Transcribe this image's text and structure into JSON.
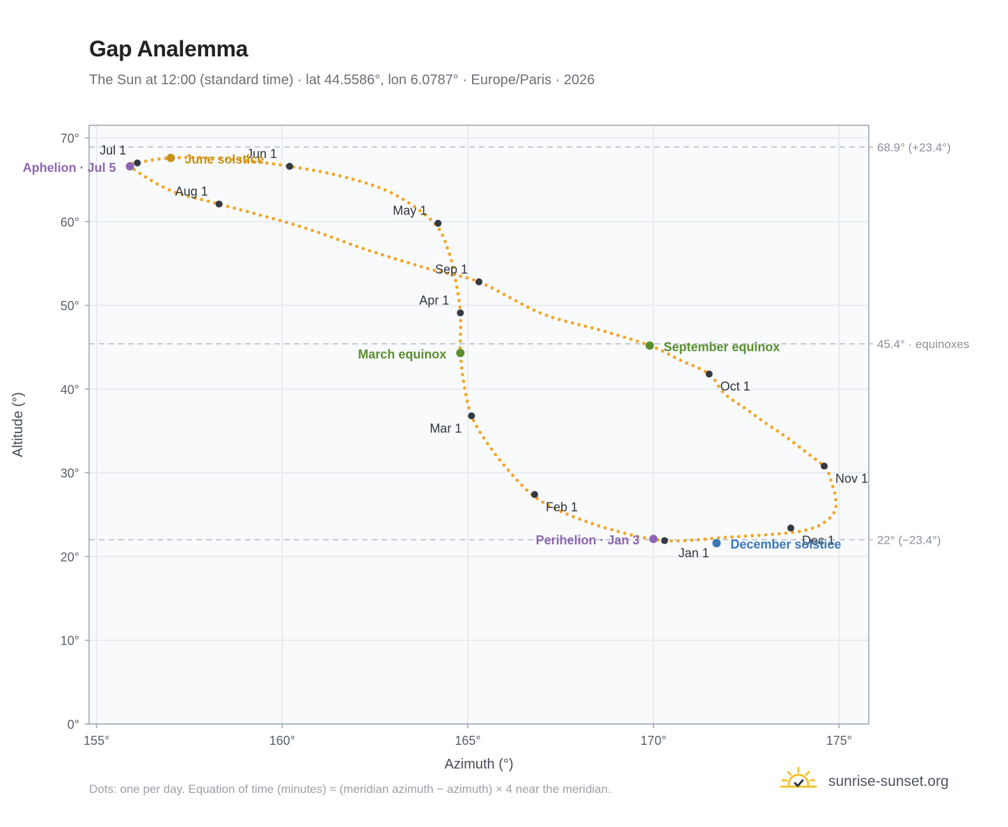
{
  "chart_data": {
    "type": "scatter",
    "title": "Gap Analemma",
    "subtitle": "The Sun at 12:00 (standard time) · lat 44.5586°, lon 6.0787° · Europe/Paris · 2026",
    "xlabel": "Azimuth (°)",
    "ylabel": "Altitude (°)",
    "xlim": [
      154.8,
      175.8
    ],
    "ylim": [
      0,
      71.5
    ],
    "x_ticks": [
      155,
      160,
      165,
      170,
      175
    ],
    "y_ticks": [
      0,
      10,
      20,
      30,
      40,
      50,
      60,
      70
    ],
    "x_tick_labels": [
      "155°",
      "160°",
      "165°",
      "170°",
      "175°"
    ],
    "y_tick_labels": [
      "0°",
      "10°",
      "20°",
      "30°",
      "40°",
      "50°",
      "60°",
      "70°"
    ],
    "grid": true,
    "colors": {
      "path": "#f0a625",
      "month_marker": "#343a42",
      "solstice_june": "#c9921a",
      "solstice_december": "#3a78b8",
      "equinox": "#5a8f2e",
      "apsis": "#8e66b0",
      "reference_line": "#b4bcc7"
    },
    "reference_lines": [
      {
        "y": 68.9,
        "label": "68.9° (+23.4°)"
      },
      {
        "y": 45.4,
        "label": "45.4° · equinoxes"
      },
      {
        "y": 22.0,
        "label": "22° (−23.4°)"
      }
    ],
    "series": [
      {
        "points": [
          [
            170.3,
            21.9
          ],
          [
            172.0,
            22.3
          ],
          [
            173.6,
            22.8
          ],
          [
            174.3,
            23.4
          ],
          [
            174.7,
            24.4
          ],
          [
            174.9,
            25.6
          ],
          [
            174.9,
            27.2
          ],
          [
            174.8,
            28.8
          ],
          [
            174.7,
            30.2
          ],
          [
            174.6,
            30.8
          ],
          [
            174.1,
            32.5
          ],
          [
            173.6,
            34.2
          ],
          [
            173.0,
            36.0
          ],
          [
            172.5,
            37.6
          ],
          [
            171.9,
            39.5
          ],
          [
            171.5,
            41.8
          ],
          [
            170.7,
            43.5
          ],
          [
            169.9,
            45.2
          ],
          [
            168.6,
            47.0
          ],
          [
            167.0,
            49.0
          ],
          [
            165.3,
            52.8
          ],
          [
            164.0,
            54.3
          ],
          [
            162.3,
            56.6
          ],
          [
            160.5,
            59.4
          ],
          [
            158.3,
            62.1
          ],
          [
            157.0,
            63.7
          ],
          [
            155.9,
            66.6
          ],
          [
            156.1,
            67.0
          ],
          [
            157.0,
            67.6
          ],
          [
            158.5,
            67.5
          ],
          [
            160.2,
            66.6
          ],
          [
            161.7,
            65.3
          ],
          [
            163.0,
            63.3
          ],
          [
            164.1,
            59.8
          ],
          [
            164.5,
            56.2
          ],
          [
            164.7,
            52.3
          ],
          [
            164.8,
            49.1
          ],
          [
            164.8,
            46.3
          ],
          [
            164.8,
            44.3
          ],
          [
            164.9,
            40.5
          ],
          [
            165.1,
            36.8
          ],
          [
            165.5,
            33.7
          ],
          [
            166.0,
            30.8
          ],
          [
            166.7,
            27.5
          ],
          [
            167.5,
            25.4
          ],
          [
            168.8,
            23.3
          ],
          [
            170.3,
            21.9
          ]
        ]
      }
    ],
    "markers": [
      {
        "label": "Jan 1",
        "x": 170.3,
        "y": 21.9
      },
      {
        "label": "Feb 1",
        "x": 166.8,
        "y": 27.4
      },
      {
        "label": "Mar 1",
        "x": 165.1,
        "y": 36.8
      },
      {
        "label": "Apr 1",
        "x": 164.8,
        "y": 49.1
      },
      {
        "label": "May 1",
        "x": 164.2,
        "y": 59.8
      },
      {
        "label": "Jun 1",
        "x": 160.2,
        "y": 66.6
      },
      {
        "label": "Jul 1",
        "x": 156.1,
        "y": 67.0
      },
      {
        "label": "Aug 1",
        "x": 158.3,
        "y": 62.1
      },
      {
        "label": "Sep 1",
        "x": 165.3,
        "y": 52.8
      },
      {
        "label": "Oct 1",
        "x": 171.5,
        "y": 41.8
      },
      {
        "label": "Nov 1",
        "x": 174.6,
        "y": 30.8
      },
      {
        "label": "Dec 1",
        "x": 173.7,
        "y": 23.4
      }
    ],
    "events": [
      {
        "label": "June solstice",
        "x": 157.0,
        "y": 67.6,
        "color": "#c9921a"
      },
      {
        "label": "December solstice",
        "x": 171.7,
        "y": 21.6,
        "color": "#3a78b8"
      },
      {
        "label": "March equinox",
        "x": 164.8,
        "y": 44.3,
        "color": "#5a8f2e"
      },
      {
        "label": "September equinox",
        "x": 169.9,
        "y": 45.2,
        "color": "#5a8f2e"
      },
      {
        "label": "Aphelion · Jul 5",
        "x": 155.9,
        "y": 66.6,
        "color": "#8e66b0"
      },
      {
        "label": "Perihelion · Jan 3",
        "x": 170.0,
        "y": 22.1,
        "color": "#8e66b0"
      }
    ]
  },
  "footnote": "Dots: one per day. Equation of time (minutes) ≈ (meridian azimuth − azimuth) × 4 near the meridian.",
  "brand": {
    "name": "sunrise-sunset.org",
    "icon": "sun-checkmark-icon"
  }
}
